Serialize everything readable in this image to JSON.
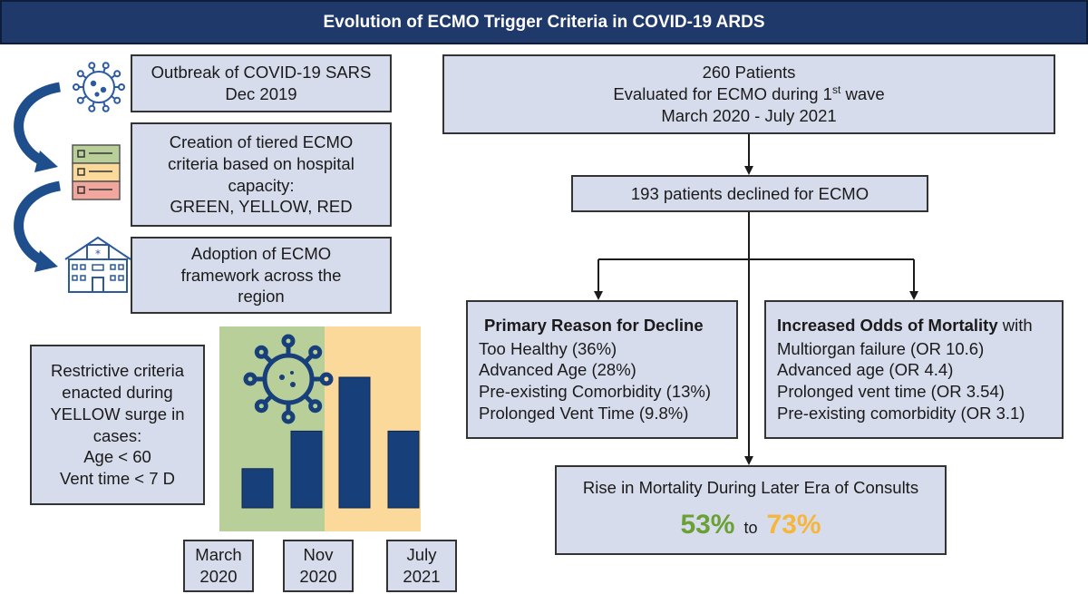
{
  "title": "Evolution of ECMO Trigger Criteria in COVID-19 ARDS",
  "timeline": [
    {
      "lines": [
        "Outbreak of COVID-19 SARS",
        "Dec 2019"
      ],
      "icon": "virus-icon"
    },
    {
      "lines": [
        "Creation of tiered ECMO",
        "criteria based on hospital",
        "capacity:",
        "GREEN, YELLOW, RED"
      ],
      "icon": "checklist-icon"
    },
    {
      "lines": [
        "Adoption of ECMO",
        "framework across the",
        "region"
      ],
      "icon": "hospital-icon"
    }
  ],
  "restrictive": {
    "lines": [
      "Restrictive criteria",
      "enacted during",
      "YELLOW surge in",
      "cases:",
      "Age < 60",
      "Vent time < 7 D"
    ]
  },
  "surge_chart": {
    "zones": [
      {
        "name": "green",
        "color": "#b9cf9a"
      },
      {
        "name": "yellow",
        "color": "#fbd99b"
      }
    ],
    "bar_color": "#173f7a",
    "bar_heights": [
      0.24,
      0.47,
      0.8,
      0.47
    ],
    "labels": [
      {
        "line1": "March",
        "line2": "2020"
      },
      {
        "line1": "Nov",
        "line2": "2020"
      },
      {
        "line1": "July",
        "line2": "2021"
      }
    ]
  },
  "flow": {
    "patients_title": "260 Patients",
    "patients_line2_pre": "Evaluated for ECMO during 1",
    "patients_line2_sup": "st",
    "patients_line2_post": " wave",
    "patients_line3": "March 2020 - July 2021",
    "declined": "193 patients declined for ECMO",
    "primary": {
      "header": "Primary Reason for Decline",
      "items": [
        "Too Healthy (36%)",
        "Advanced Age (28%)",
        "Pre-existing Comorbidity (13%)",
        "Prolonged Vent Time (9.8%)"
      ]
    },
    "odds": {
      "header_bold": "Increased Odds of Mortality",
      "header_rest": " with",
      "items": [
        "Multiorgan failure (OR 10.6)",
        "Advanced age (OR 4.4)",
        "Prolonged vent time (OR 3.54)",
        "Pre-existing comorbidity (OR 3.1)"
      ]
    },
    "mortality": {
      "title": "Rise in Mortality During Later Era of Consults",
      "from": "53%",
      "to_word": "to",
      "to": "73%",
      "from_color": "#6aa136",
      "to_color": "#f6b63b"
    }
  }
}
